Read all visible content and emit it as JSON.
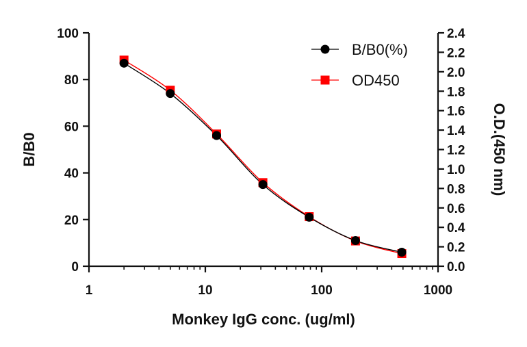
{
  "chart_data": {
    "type": "line",
    "xlabel": "Monkey IgG conc. (ug/ml)",
    "ylabel": "B/B0",
    "y2label": "O.D.(450 nm)",
    "x_scale": "log",
    "xlim": [
      1,
      1000
    ],
    "ylim": [
      0,
      100
    ],
    "y2lim": [
      0,
      2.4
    ],
    "x_ticks": [
      "1",
      "10",
      "100",
      "1000"
    ],
    "y_ticks": [
      "0",
      "20",
      "40",
      "60",
      "80",
      "100"
    ],
    "y2_ticks": [
      "0.0",
      "0.2",
      "0.4",
      "0.6",
      "0.8",
      "1.0",
      "1.2",
      "1.4",
      "1.6",
      "1.8",
      "2.0",
      "2.2",
      "2.4"
    ],
    "legend_position": "top-right",
    "series": [
      {
        "name": "B/B0(%)",
        "axis": "left",
        "marker": "circle",
        "color": "#000000",
        "x": [
          2,
          5,
          12.5,
          31.25,
          78.125,
          195.3,
          488.3
        ],
        "y": [
          87,
          74,
          56,
          35,
          21,
          11,
          6
        ]
      },
      {
        "name": "OD450",
        "axis": "right",
        "marker": "square",
        "color": "#ff0000",
        "x": [
          2,
          5,
          12.5,
          31.25,
          78.125,
          195.3,
          488.3
        ],
        "y": [
          2.12,
          1.81,
          1.36,
          0.86,
          0.51,
          0.26,
          0.13
        ]
      }
    ]
  }
}
